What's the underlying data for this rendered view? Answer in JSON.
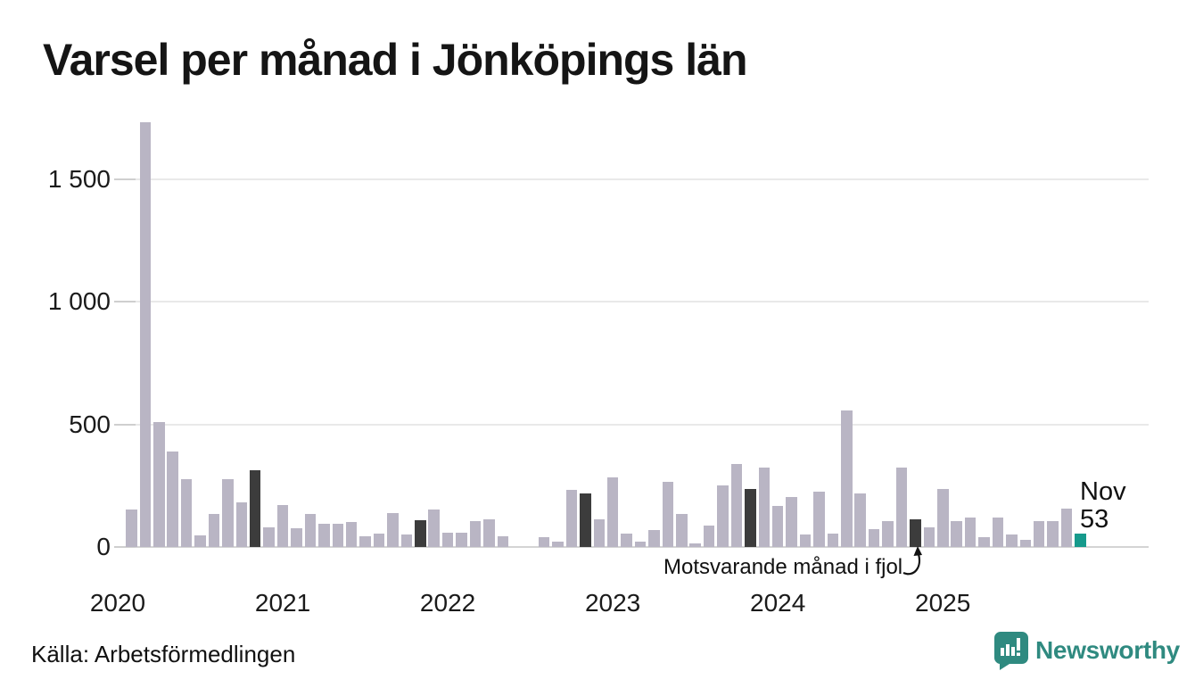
{
  "title": "Varsel per månad i Jönköpings län",
  "source_note": "Källa: Arbetsförmedlingen",
  "annotation": {
    "text": "Motsvarande månad i fjol",
    "points_to_month": "2024-11"
  },
  "current_point_label": {
    "line1": "Nov",
    "line2": "53"
  },
  "branding": {
    "name": "Newsworthy",
    "icon": "speech-bubble-bar-chart-icon"
  },
  "colors": {
    "bar_base": "#b9b5c4",
    "bar_same_month_last_year": "#3c3c3c",
    "bar_current": "#169a8c",
    "brand_teal": "#2f8a80",
    "gridline": "#e9e9e9",
    "zero_line": "#d4d4d4",
    "text": "#151515"
  },
  "chart_data": {
    "type": "bar",
    "title": "Varsel per månad i Jönköpings län",
    "xlabel": "",
    "ylabel": "",
    "ylim": [
      0,
      1750
    ],
    "grid": "horizontal",
    "legend_position": "none",
    "x_range_months": [
      "2020-01",
      "2025-11"
    ],
    "y_ticks": [
      {
        "v": 0,
        "label": "0"
      },
      {
        "v": 500,
        "label": "500"
      },
      {
        "v": 1000,
        "label": "1 000"
      },
      {
        "v": 1500,
        "label": "1 500"
      }
    ],
    "x_ticks": [
      {
        "k": 0,
        "label": "2020"
      },
      {
        "k": 12,
        "label": "2021"
      },
      {
        "k": 24,
        "label": "2022"
      },
      {
        "k": 36,
        "label": "2023"
      },
      {
        "k": 48,
        "label": "2024"
      },
      {
        "k": 60,
        "label": "2025"
      }
    ],
    "bar_types": {
      "base": "regular month",
      "fjol": "same month last year (highlighted dark)",
      "current": "latest month (teal)"
    },
    "bars": [
      {
        "m": "2020-02",
        "v": 154,
        "t": "base"
      },
      {
        "m": "2020-03",
        "v": 1730,
        "t": "base"
      },
      {
        "m": "2020-04",
        "v": 510,
        "t": "base"
      },
      {
        "m": "2020-05",
        "v": 389,
        "t": "base"
      },
      {
        "m": "2020-06",
        "v": 275,
        "t": "base"
      },
      {
        "m": "2020-07",
        "v": 47,
        "t": "base"
      },
      {
        "m": "2020-08",
        "v": 136,
        "t": "base"
      },
      {
        "m": "2020-09",
        "v": 277,
        "t": "base"
      },
      {
        "m": "2020-10",
        "v": 181,
        "t": "base"
      },
      {
        "m": "2020-11",
        "v": 312,
        "t": "fjol"
      },
      {
        "m": "2020-12",
        "v": 81,
        "t": "base"
      },
      {
        "m": "2021-01",
        "v": 171,
        "t": "base"
      },
      {
        "m": "2021-02",
        "v": 77,
        "t": "base"
      },
      {
        "m": "2021-03",
        "v": 136,
        "t": "base"
      },
      {
        "m": "2021-04",
        "v": 93,
        "t": "base"
      },
      {
        "m": "2021-05",
        "v": 96,
        "t": "base"
      },
      {
        "m": "2021-06",
        "v": 103,
        "t": "base"
      },
      {
        "m": "2021-07",
        "v": 45,
        "t": "base"
      },
      {
        "m": "2021-08",
        "v": 56,
        "t": "base"
      },
      {
        "m": "2021-09",
        "v": 138,
        "t": "base"
      },
      {
        "m": "2021-10",
        "v": 50,
        "t": "base"
      },
      {
        "m": "2021-11",
        "v": 108,
        "t": "fjol"
      },
      {
        "m": "2021-12",
        "v": 152,
        "t": "base"
      },
      {
        "m": "2022-01",
        "v": 57,
        "t": "base"
      },
      {
        "m": "2022-02",
        "v": 59,
        "t": "base"
      },
      {
        "m": "2022-03",
        "v": 105,
        "t": "base"
      },
      {
        "m": "2022-04",
        "v": 114,
        "t": "base"
      },
      {
        "m": "2022-05",
        "v": 42,
        "t": "base"
      },
      {
        "m": "2022-06",
        "v": 0,
        "t": "base"
      },
      {
        "m": "2022-07",
        "v": 0,
        "t": "base"
      },
      {
        "m": "2022-08",
        "v": 41,
        "t": "base"
      },
      {
        "m": "2022-09",
        "v": 21,
        "t": "base"
      },
      {
        "m": "2022-10",
        "v": 234,
        "t": "base"
      },
      {
        "m": "2022-11",
        "v": 217,
        "t": "fjol"
      },
      {
        "m": "2022-12",
        "v": 113,
        "t": "base"
      },
      {
        "m": "2023-01",
        "v": 285,
        "t": "base"
      },
      {
        "m": "2023-02",
        "v": 53,
        "t": "base"
      },
      {
        "m": "2023-03",
        "v": 22,
        "t": "base"
      },
      {
        "m": "2023-04",
        "v": 69,
        "t": "base"
      },
      {
        "m": "2023-05",
        "v": 267,
        "t": "base"
      },
      {
        "m": "2023-06",
        "v": 134,
        "t": "base"
      },
      {
        "m": "2023-07",
        "v": 13,
        "t": "base"
      },
      {
        "m": "2023-08",
        "v": 89,
        "t": "base"
      },
      {
        "m": "2023-09",
        "v": 252,
        "t": "base"
      },
      {
        "m": "2023-10",
        "v": 339,
        "t": "base"
      },
      {
        "m": "2023-11",
        "v": 236,
        "t": "fjol"
      },
      {
        "m": "2023-12",
        "v": 322,
        "t": "base"
      },
      {
        "m": "2024-01",
        "v": 168,
        "t": "base"
      },
      {
        "m": "2024-02",
        "v": 204,
        "t": "base"
      },
      {
        "m": "2024-03",
        "v": 51,
        "t": "base"
      },
      {
        "m": "2024-04",
        "v": 224,
        "t": "base"
      },
      {
        "m": "2024-05",
        "v": 55,
        "t": "base"
      },
      {
        "m": "2024-06",
        "v": 555,
        "t": "base"
      },
      {
        "m": "2024-07",
        "v": 218,
        "t": "base"
      },
      {
        "m": "2024-08",
        "v": 73,
        "t": "base"
      },
      {
        "m": "2024-09",
        "v": 104,
        "t": "base"
      },
      {
        "m": "2024-10",
        "v": 324,
        "t": "base"
      },
      {
        "m": "2024-11",
        "v": 113,
        "t": "fjol"
      },
      {
        "m": "2024-12",
        "v": 80,
        "t": "base"
      },
      {
        "m": "2025-01",
        "v": 236,
        "t": "base"
      },
      {
        "m": "2025-02",
        "v": 105,
        "t": "base"
      },
      {
        "m": "2025-03",
        "v": 119,
        "t": "base"
      },
      {
        "m": "2025-04",
        "v": 41,
        "t": "base"
      },
      {
        "m": "2025-05",
        "v": 119,
        "t": "base"
      },
      {
        "m": "2025-06",
        "v": 50,
        "t": "base"
      },
      {
        "m": "2025-07",
        "v": 28,
        "t": "base"
      },
      {
        "m": "2025-08",
        "v": 105,
        "t": "base"
      },
      {
        "m": "2025-09",
        "v": 105,
        "t": "base"
      },
      {
        "m": "2025-10",
        "v": 158,
        "t": "base"
      },
      {
        "m": "2025-11",
        "v": 53,
        "t": "current"
      }
    ]
  }
}
